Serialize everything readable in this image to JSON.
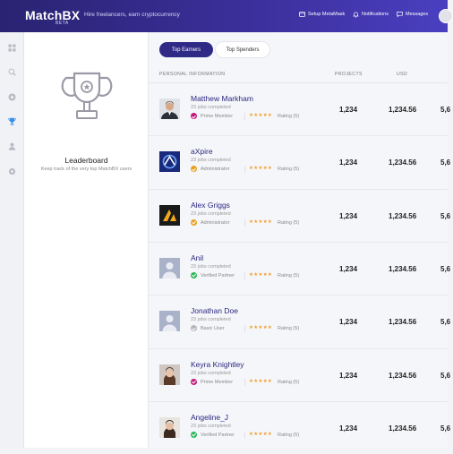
{
  "header": {
    "logo": "MatchBX",
    "logo_badge": "BETA",
    "tagline": "Hire freelancers, earn cryptocurrency",
    "nav": {
      "metamask": "Setup MetaMask",
      "notifications": "Notifications",
      "messages": "Messages"
    }
  },
  "sidebar": {
    "icons": [
      "dashboard-icon",
      "search-icon",
      "add-icon",
      "trophy-icon",
      "user-icon",
      "settings-icon"
    ],
    "active_index": 3
  },
  "panel": {
    "title": "Leaderboard",
    "subtitle": "Keep track of the very top MatchBX users"
  },
  "tabs": {
    "earners": "Top Earners",
    "spenders": "Top Spenders"
  },
  "table": {
    "headers": {
      "info": "PERSONAL INFORMATION",
      "projects": "PROJECTS",
      "usd": "USD"
    },
    "rows": [
      {
        "name": "Matthew Markham",
        "jobs": "23 jobs completed",
        "role": "Prime Member",
        "stars": "★★★★★",
        "rating": "Rating (5)",
        "projects": "1,234",
        "usd": "1,234.56",
        "extra": "5,6",
        "role_color": "#c2187a",
        "avatar": "photo-man-suit"
      },
      {
        "name": "aXpire",
        "jobs": "23 jobs completed",
        "role": "Administrator",
        "stars": "★★★★★",
        "rating": "Rating (5)",
        "projects": "1,234",
        "usd": "1,234.56",
        "extra": "5,6",
        "role_color": "#e8a020",
        "avatar": "logo-axpire"
      },
      {
        "name": "Alex Griggs",
        "jobs": "23 jobs completed",
        "role": "Administrator",
        "stars": "★★★★★",
        "rating": "Rating (5)",
        "projects": "1,234",
        "usd": "1,234.56",
        "extra": "5,6",
        "role_color": "#e8a020",
        "avatar": "logo-alex"
      },
      {
        "name": "Anil",
        "jobs": "23 jobs completed",
        "role": "Verified Partner",
        "stars": "★★★★★",
        "rating": "Rating (5)",
        "projects": "1,234",
        "usd": "1,234.56",
        "extra": "5,6",
        "role_color": "#2db85a",
        "avatar": "placeholder"
      },
      {
        "name": "Jonathan Doe",
        "jobs": "23 jobs completed",
        "role": "Basic User",
        "stars": "★★★★★",
        "rating": "Rating (5)",
        "projects": "1,234",
        "usd": "1,234.56",
        "extra": "5,6",
        "role_color": "#b5b5bd",
        "avatar": "placeholder"
      },
      {
        "name": "Keyra Knightley",
        "jobs": "23 jobs completed",
        "role": "Prime Member",
        "stars": "★★★★★",
        "rating": "Rating (5)",
        "projects": "1,234",
        "usd": "1,234.56",
        "extra": "5,6",
        "role_color": "#c2187a",
        "avatar": "photo-woman"
      },
      {
        "name": "Angeline_J",
        "jobs": "23 jobs completed",
        "role": "Verified Partner",
        "stars": "★★★★★",
        "rating": "Rating (5)",
        "projects": "1,234",
        "usd": "1,234.56",
        "extra": "5,6",
        "role_color": "#2db85a",
        "avatar": "photo-woman-2"
      }
    ]
  },
  "colors": {
    "brand_dark": "#2a2372",
    "brand_accent": "#2f2a86",
    "star": "#f0a030"
  }
}
